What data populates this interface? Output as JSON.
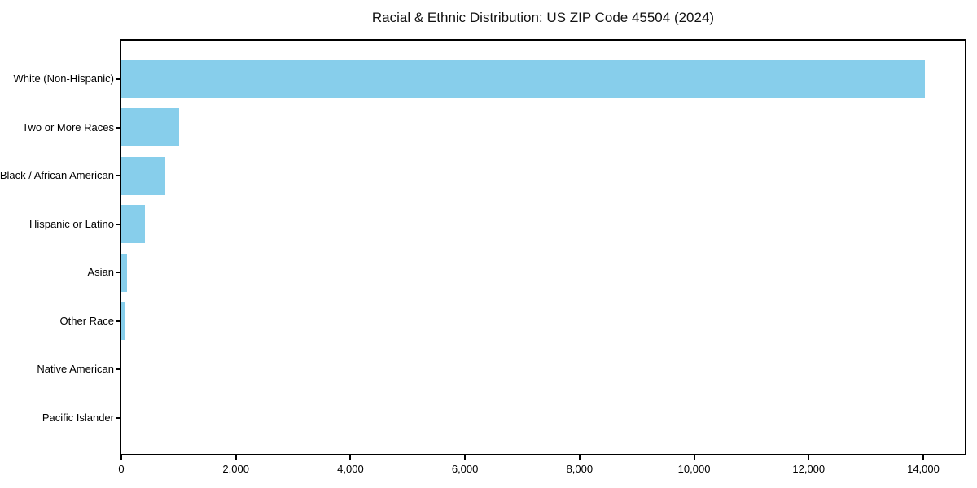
{
  "title": "Racial & Ethnic Distribution: US ZIP Code 45504 (2024)",
  "colors": {
    "bar_fill": "#87CEEB",
    "axis": "#000000",
    "background": "#ffffff",
    "text": "#000000"
  },
  "chart_data": {
    "type": "bar",
    "orientation": "horizontal",
    "title": "Racial & Ethnic Distribution: US ZIP Code 45504 (2024)",
    "categories": [
      "White (Non-Hispanic)",
      "Two or More Races",
      "Black / African American",
      "Hispanic or Latino",
      "Asian",
      "Other Race",
      "Native American",
      "Pacific Islander"
    ],
    "values": [
      14035,
      1010,
      765,
      410,
      100,
      57,
      0,
      0
    ],
    "xlabel": "",
    "ylabel": "",
    "xlim": [
      0,
      14725
    ],
    "xticks": [
      0,
      2000,
      4000,
      6000,
      8000,
      10000,
      12000,
      14000
    ],
    "xtick_labels": [
      "0",
      "2,000",
      "4,000",
      "6,000",
      "8,000",
      "10,000",
      "12,000",
      "14,000"
    ],
    "grid": false,
    "legend": null,
    "bar_color": "#87CEEB"
  }
}
